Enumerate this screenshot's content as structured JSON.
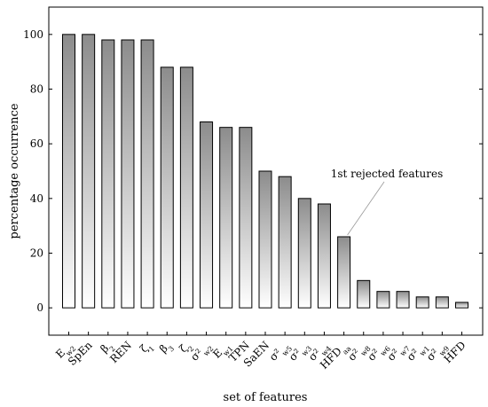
{
  "chart_data": {
    "type": "bar",
    "categories": [
      "E_w2",
      "SpEn",
      "β2",
      "REN",
      "ζ1",
      "β3",
      "ζ2",
      "σ²_w2",
      "E_w1",
      "TPN",
      "SaEN",
      "σ²_w5",
      "σ²_w3",
      "σ²_w4",
      "HFD_aa",
      "σ²_w8",
      "σ²_w6",
      "σ²_w7",
      "σ²_w1",
      "σ²_w9",
      "HFD"
    ],
    "values": [
      100,
      100,
      98,
      98,
      98,
      88,
      88,
      68,
      66,
      66,
      50,
      48,
      40,
      38,
      26,
      10,
      6,
      6,
      4,
      4,
      2
    ],
    "xlabel": "set of features",
    "ylabel": "percentage occurrence",
    "ylim": [
      -10,
      110
    ],
    "yticks": [
      0,
      20,
      40,
      60,
      80,
      100
    ],
    "grid": false,
    "colors": {
      "bar_top": "#8c8c8c",
      "bar_bottom": "#ffffff",
      "outline": "#000000"
    },
    "annotation": {
      "text": "1st rejected features",
      "target_category": "HFD_aa"
    }
  }
}
